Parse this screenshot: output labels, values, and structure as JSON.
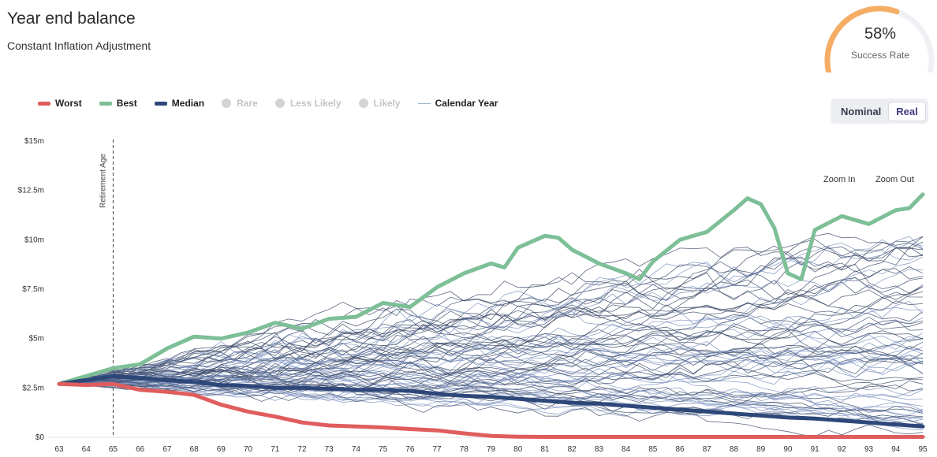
{
  "header": {
    "title": "Year end balance",
    "subtitle": "Constant Inflation Adjustment"
  },
  "gauge": {
    "value_text": "58%",
    "label": "Success Rate",
    "fraction": 0.58,
    "color": "#f5ad66",
    "track_color": "#eef0f3"
  },
  "legend": [
    {
      "label": "Worst",
      "kind": "line",
      "color": "#e05d5d",
      "active": true
    },
    {
      "label": "Best",
      "kind": "line",
      "color": "#7dbf97",
      "active": true
    },
    {
      "label": "Median",
      "kind": "line",
      "color": "#2d4779",
      "active": true
    },
    {
      "label": "Rare",
      "kind": "dot",
      "color": "#d4d4d4",
      "active": false
    },
    {
      "label": "Less Likely",
      "kind": "dot",
      "color": "#d4d4d4",
      "active": false
    },
    {
      "label": "Likely",
      "kind": "dot",
      "color": "#d4d4d4",
      "active": false
    },
    {
      "label": "Calendar Year",
      "kind": "thin",
      "color": "#9fb3d6",
      "active": true
    }
  ],
  "toggle": {
    "nominal": "Nominal",
    "real": "Real",
    "selected": "Real"
  },
  "zoom": {
    "in": "Zoom In",
    "out": "Zoom Out"
  },
  "chart_data": {
    "type": "line",
    "xlabel": "",
    "ylabel": "",
    "xlim": [
      63,
      95
    ],
    "ylim": [
      0,
      15
    ],
    "y_ticks": [
      {
        "v": 0,
        "label": "$0"
      },
      {
        "v": 2.5,
        "label": "$2.5m"
      },
      {
        "v": 5,
        "label": "$5m"
      },
      {
        "v": 7.5,
        "label": "$7.5m"
      },
      {
        "v": 10,
        "label": "$10m"
      },
      {
        "v": 12.5,
        "label": "$12.5m"
      },
      {
        "v": 15,
        "label": "$15m"
      }
    ],
    "x_ticks": [
      63,
      64,
      65,
      66,
      67,
      68,
      69,
      70,
      71,
      72,
      73,
      74,
      75,
      76,
      77,
      78,
      79,
      80,
      81,
      82,
      83,
      84,
      85,
      86,
      87,
      88,
      89,
      90,
      91,
      92,
      93,
      94,
      95
    ],
    "annotation": {
      "x": 65,
      "label": "Retirement Age"
    },
    "series": [
      {
        "name": "Best",
        "color": "#7dbf97",
        "x": [
          63,
          64,
          65,
          66,
          67,
          68,
          69,
          70,
          71,
          72,
          73,
          74,
          75,
          76,
          77,
          78,
          79,
          79.5,
          80,
          81,
          81.5,
          82,
          83,
          84,
          84.5,
          85,
          86,
          87,
          88,
          88.5,
          89,
          89.5,
          90,
          90.5,
          91,
          92,
          93,
          94,
          94.5,
          95
        ],
        "values": [
          2.7,
          3.1,
          3.5,
          3.7,
          4.5,
          5.1,
          5.0,
          5.3,
          5.8,
          5.5,
          6.0,
          6.1,
          6.8,
          6.6,
          7.6,
          8.3,
          8.8,
          8.6,
          9.6,
          10.2,
          10.1,
          9.5,
          8.8,
          8.3,
          8.0,
          8.9,
          10.0,
          10.4,
          11.5,
          12.1,
          11.8,
          10.6,
          8.3,
          8.0,
          10.5,
          11.2,
          10.8,
          11.5,
          11.6,
          12.3
        ]
      },
      {
        "name": "Median",
        "color": "#2d4779",
        "x": [
          63,
          64,
          65,
          66,
          67,
          68,
          69,
          70,
          71,
          72,
          73,
          74,
          75,
          76,
          77,
          78,
          79,
          80,
          81,
          82,
          83,
          84,
          85,
          86,
          87,
          88,
          89,
          90,
          91,
          92,
          93,
          94,
          95
        ],
        "values": [
          2.7,
          2.9,
          3.1,
          3.0,
          2.9,
          2.8,
          2.65,
          2.6,
          2.5,
          2.5,
          2.45,
          2.4,
          2.4,
          2.35,
          2.2,
          2.1,
          2.05,
          1.95,
          1.85,
          1.75,
          1.7,
          1.6,
          1.5,
          1.4,
          1.3,
          1.2,
          1.1,
          1.0,
          0.95,
          0.85,
          0.75,
          0.65,
          0.55
        ]
      },
      {
        "name": "Worst",
        "color": "#e05d5d",
        "x": [
          63,
          64,
          65,
          66,
          67,
          68,
          69,
          70,
          71,
          72,
          73,
          74,
          75,
          76,
          77,
          78,
          79,
          80,
          81,
          82,
          83,
          84,
          85,
          86,
          87,
          88,
          89,
          90,
          91,
          92,
          93,
          94,
          95
        ],
        "values": [
          2.7,
          2.65,
          2.7,
          2.4,
          2.3,
          2.15,
          1.65,
          1.3,
          1.05,
          0.75,
          0.6,
          0.55,
          0.5,
          0.42,
          0.35,
          0.2,
          0.07,
          0.03,
          0.02,
          0.02,
          0.02,
          0.02,
          0.02,
          0.02,
          0.02,
          0.02,
          0.02,
          0.02,
          0.02,
          0.02,
          0.02,
          0.02,
          0.02
        ]
      }
    ],
    "calendar_year_paths": {
      "count": 72,
      "start_value": 2.7,
      "end_min": 0.1,
      "end_max": 10.6
    }
  }
}
